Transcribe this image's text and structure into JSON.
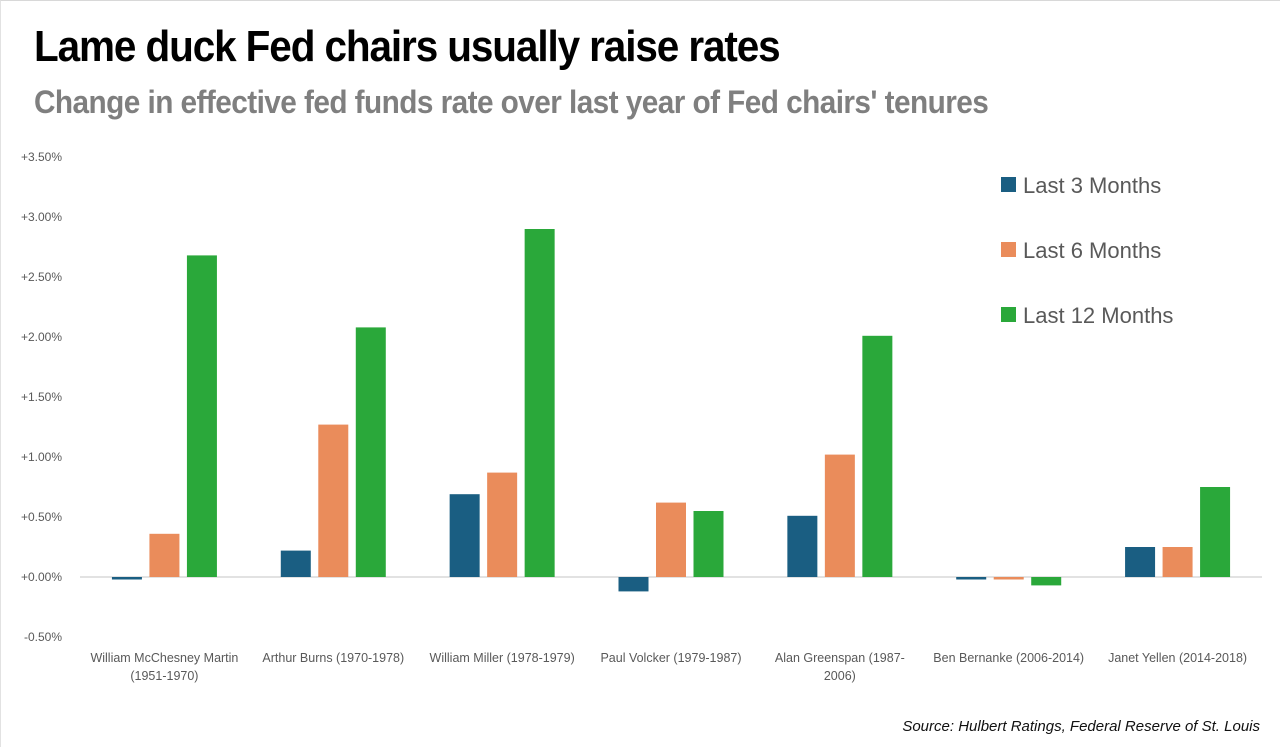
{
  "chart_data": {
    "type": "bar",
    "title": "Lame duck Fed chairs usually raise rates",
    "subtitle": "Change in effective fed funds rate over last year of Fed chairs' tenures",
    "xlabel": "",
    "ylabel": "",
    "ylim": [
      -0.5,
      3.5
    ],
    "yticks": [
      -0.5,
      0.0,
      0.5,
      1.0,
      1.5,
      2.0,
      2.5,
      3.0,
      3.5
    ],
    "ytick_labels": [
      "-0.50%",
      "+0.00%",
      "+0.50%",
      "+1.00%",
      "+1.50%",
      "+2.00%",
      "+2.50%",
      "+3.00%",
      "+3.50%"
    ],
    "grid": false,
    "legend_position": "top-right",
    "categories": [
      [
        "William McChesney Martin",
        "(1951-1970)"
      ],
      [
        "Arthur Burns (1970-1978)"
      ],
      [
        "William Miller (1978-1979)"
      ],
      [
        "Paul Volcker (1979-1987)"
      ],
      [
        "Alan Greenspan (1987-",
        "2006)"
      ],
      [
        "Ben Bernanke (2006-2014)"
      ],
      [
        "Janet Yellen (2014-2018)"
      ]
    ],
    "series": [
      {
        "name": "Last 3 Months",
        "color": "#1a5e82",
        "values": [
          -0.02,
          0.22,
          0.69,
          -0.12,
          0.51,
          -0.02,
          0.25
        ]
      },
      {
        "name": "Last 6 Months",
        "color": "#ea8c5b",
        "values": [
          0.36,
          1.27,
          0.87,
          0.62,
          1.02,
          -0.02,
          0.25
        ]
      },
      {
        "name": "Last 12 Months",
        "color": "#2aa83a",
        "values": [
          2.68,
          2.08,
          2.9,
          0.55,
          2.01,
          -0.07,
          0.75
        ]
      }
    ],
    "source": "Source: Hulbert Ratings, Federal Reserve of St. Louis"
  }
}
